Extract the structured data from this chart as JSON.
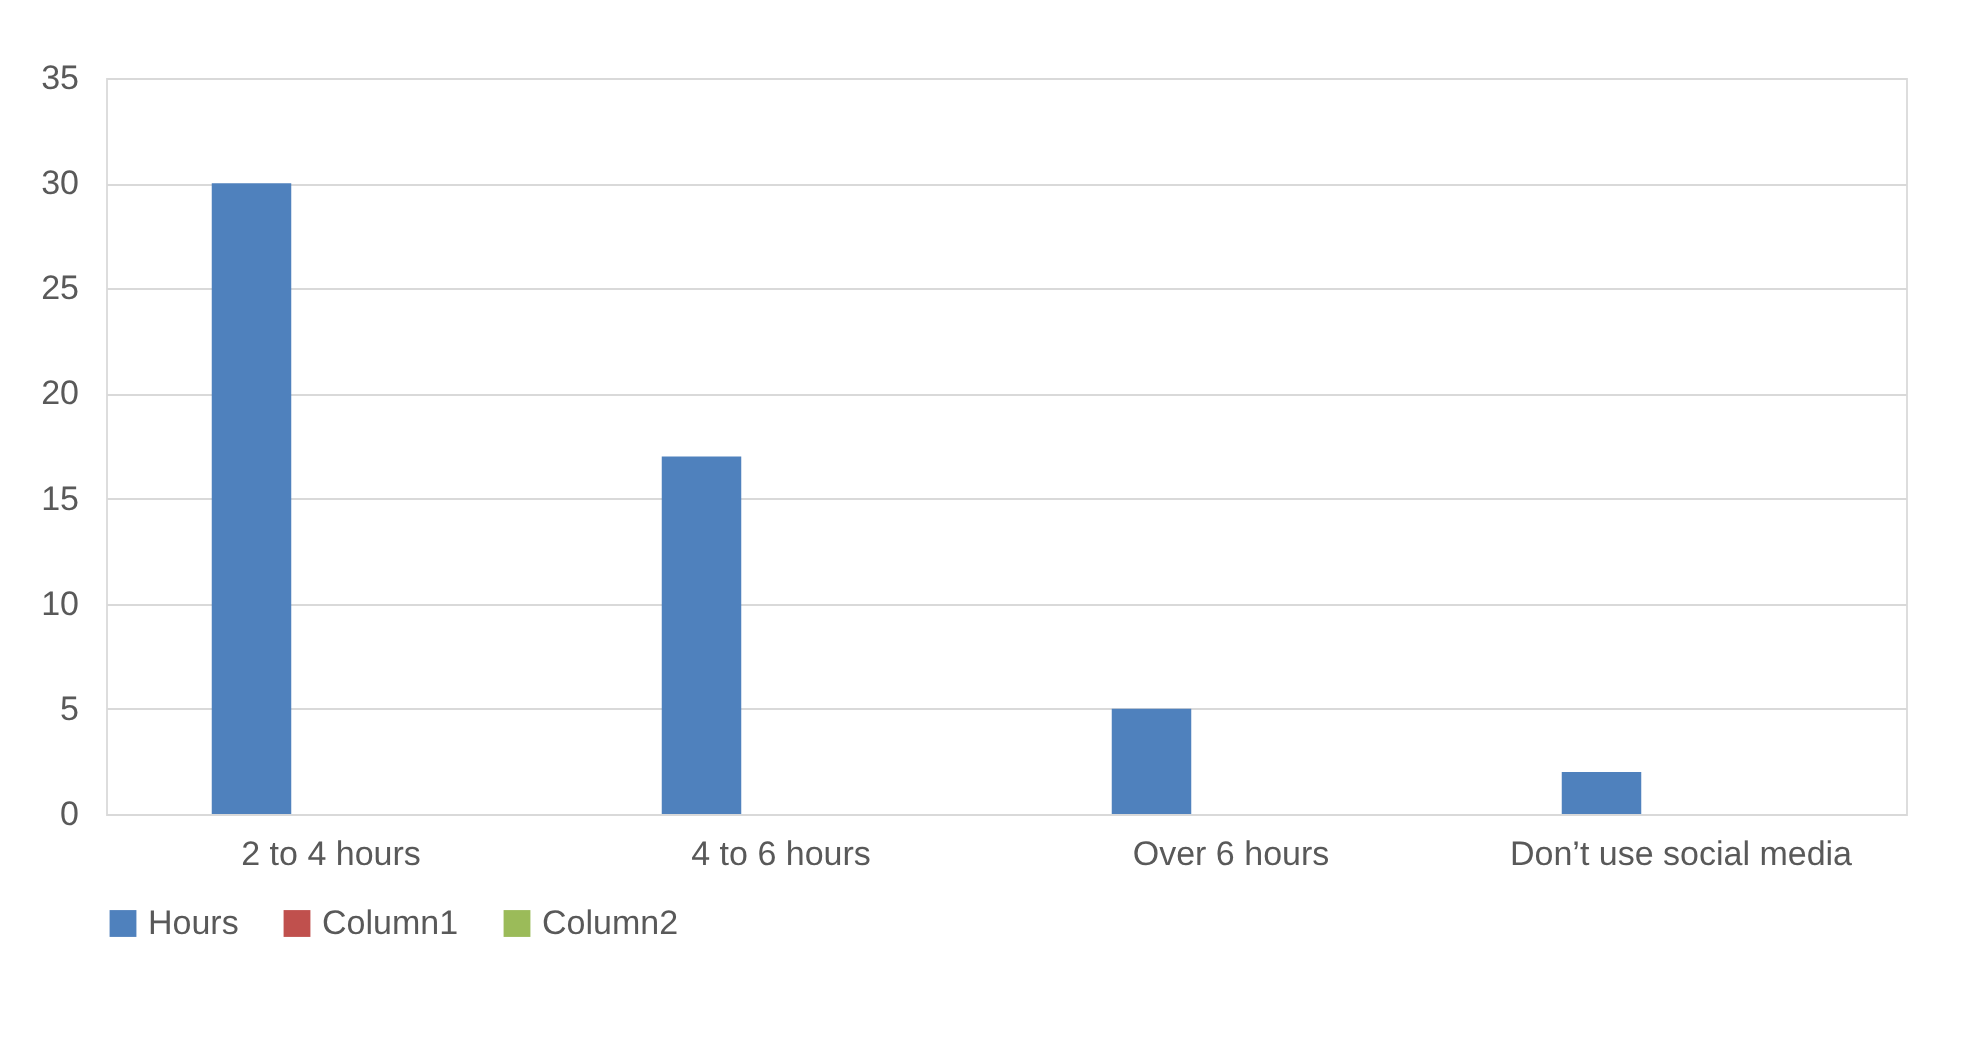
{
  "chart_data": {
    "type": "bar",
    "categories": [
      "2 to 4 hours",
      "4 to 6 hours",
      "Over 6 hours",
      "Don’t use social media"
    ],
    "series": [
      {
        "name": "Hours",
        "color": "#4f81bd",
        "values": [
          30,
          17,
          5,
          2
        ]
      },
      {
        "name": "Column1",
        "color": "#c0504d",
        "values": [
          null,
          null,
          null,
          null
        ]
      },
      {
        "name": "Column2",
        "color": "#9bbb59",
        "values": [
          null,
          null,
          null,
          null
        ]
      }
    ],
    "ylim": [
      0,
      35
    ],
    "yticks": [
      0,
      5,
      10,
      15,
      20,
      25,
      30,
      35
    ],
    "grid": "y",
    "legend": "bottom"
  }
}
